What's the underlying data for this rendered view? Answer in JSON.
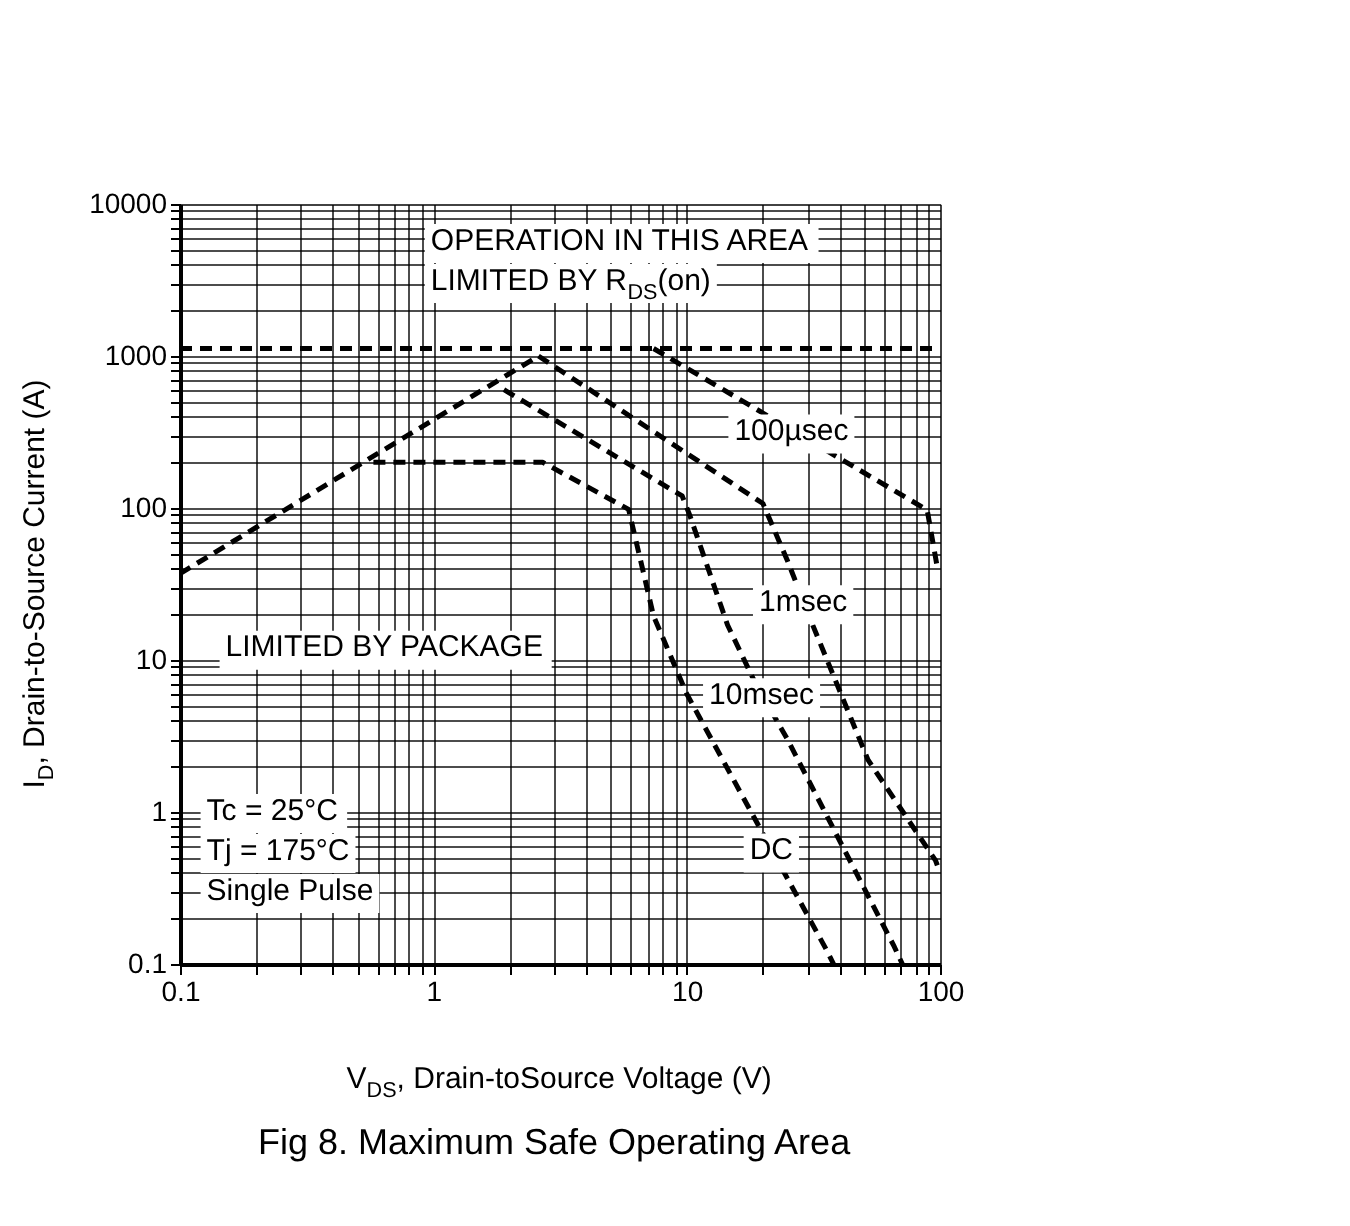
{
  "chart_data": {
    "type": "line",
    "title": "Fig 8.  Maximum Safe Operating Area",
    "xlabel": "V$_{DS}$, Drain-toSource Voltage (V)",
    "ylabel": "I$_{D}$, Drain-to-Source Current (A)",
    "log": "xy",
    "grid": true,
    "legend": false,
    "line_style": "dashed",
    "xlim": [
      0.1,
      100
    ],
    "ylim": [
      0.1,
      10000
    ],
    "xticks": [
      0.1,
      {
        "value": 0.2,
        "label": null
      },
      {
        "value": 0.3,
        "label": null
      },
      {
        "value": 0.4,
        "label": null
      },
      {
        "value": 0.5,
        "label": null
      },
      {
        "value": 0.6,
        "label": null
      },
      {
        "value": 0.7,
        "label": null
      },
      {
        "value": 0.8,
        "label": null
      },
      {
        "value": 0.9,
        "label": null
      },
      1,
      {
        "value": 2,
        "label": null
      },
      {
        "value": 3,
        "label": null
      },
      {
        "value": 4,
        "label": null
      },
      {
        "value": 5,
        "label": null
      },
      {
        "value": 6,
        "label": null
      },
      {
        "value": 7,
        "label": null
      },
      {
        "value": 8,
        "label": null
      },
      {
        "value": 9,
        "label": null
      },
      10,
      {
        "value": 20,
        "label": null
      },
      {
        "value": 30,
        "label": null
      },
      {
        "value": 40,
        "label": null
      },
      {
        "value": 50,
        "label": null
      },
      {
        "value": 60,
        "label": null
      },
      {
        "value": 70,
        "label": null
      },
      {
        "value": 80,
        "label": null
      },
      {
        "value": 90,
        "label": null
      },
      100
    ],
    "yticks": [
      0.1,
      {
        "value": 0.2,
        "label": null
      },
      {
        "value": 0.3,
        "label": null
      },
      {
        "value": 0.4,
        "label": null
      },
      {
        "value": 0.5,
        "label": null
      },
      {
        "value": 0.6,
        "label": null
      },
      {
        "value": 0.7,
        "label": null
      },
      {
        "value": 0.8,
        "label": null
      },
      {
        "value": 0.9,
        "label": null
      },
      1,
      {
        "value": 2,
        "label": null
      },
      {
        "value": 3,
        "label": null
      },
      {
        "value": 4,
        "label": null
      },
      {
        "value": 5,
        "label": null
      },
      {
        "value": 6,
        "label": null
      },
      {
        "value": 7,
        "label": null
      },
      {
        "value": 8,
        "label": null
      },
      {
        "value": 9,
        "label": null
      },
      10,
      {
        "value": 20,
        "label": null
      },
      {
        "value": 30,
        "label": null
      },
      {
        "value": 40,
        "label": null
      },
      {
        "value": 50,
        "label": null
      },
      {
        "value": 60,
        "label": null
      },
      {
        "value": 70,
        "label": null
      },
      {
        "value": 80,
        "label": null
      },
      {
        "value": 90,
        "label": null
      },
      100,
      {
        "value": 200,
        "label": null
      },
      {
        "value": 300,
        "label": null
      },
      {
        "value": 400,
        "label": null
      },
      {
        "value": 500,
        "label": null
      },
      {
        "value": 600,
        "label": null
      },
      {
        "value": 700,
        "label": null
      },
      {
        "value": 800,
        "label": null
      },
      {
        "value": 900,
        "label": null
      },
      1000,
      {
        "value": 2000,
        "label": null
      },
      {
        "value": 3000,
        "label": null
      },
      {
        "value": 4000,
        "label": null
      },
      {
        "value": 5000,
        "label": null
      },
      {
        "value": 6000,
        "label": null
      },
      {
        "value": 7000,
        "label": null
      },
      {
        "value": 8000,
        "label": null
      },
      {
        "value": 9000,
        "label": null
      },
      10000
    ],
    "series": [
      {
        "color": "#000000",
        "x": [
          0.1,
          2.6
        ],
        "values": [
          37,
          1000
        ]
      },
      {
        "color": "#000000",
        "x": [
          0.1,
          100
        ],
        "values": [
          1120,
          1120
        ]
      },
      {
        "name": "100µsec",
        "color": "#000000",
        "x": [
          7.4,
          89,
          97
        ],
        "values": [
          1120,
          97,
          43
        ]
      },
      {
        "name": "1msec",
        "color": "#000000",
        "x": [
          2.6,
          20,
          25,
          31,
          52,
          96,
          100
        ],
        "values": [
          1000,
          107,
          45,
          18,
          2.2,
          0.48,
          0.4
        ]
      },
      {
        "name": "10msec",
        "color": "#000000",
        "x": [
          1.9,
          9.6,
          10.3,
          14.5,
          18.4,
          25,
          66,
          71
        ],
        "values": [
          600,
          120,
          89,
          17,
          7.4,
          3,
          0.13,
          0.1
        ]
      },
      {
        "name": "DC",
        "color": "#000000",
        "x": [
          0.58,
          2.7,
          5.9,
          7.4,
          10,
          20,
          36,
          38
        ],
        "values": [
          200,
          200,
          98,
          19.5,
          6,
          0.72,
          0.12,
          0.1
        ]
      }
    ],
    "annotations": [
      "OPERATION IN THIS AREA\nLIMITED BY R$_{DS}$(on)",
      "LIMITED BY PACKAGE",
      "Tc = 25°C\nTj = 175°C\nSingle Pulse"
    ]
  }
}
